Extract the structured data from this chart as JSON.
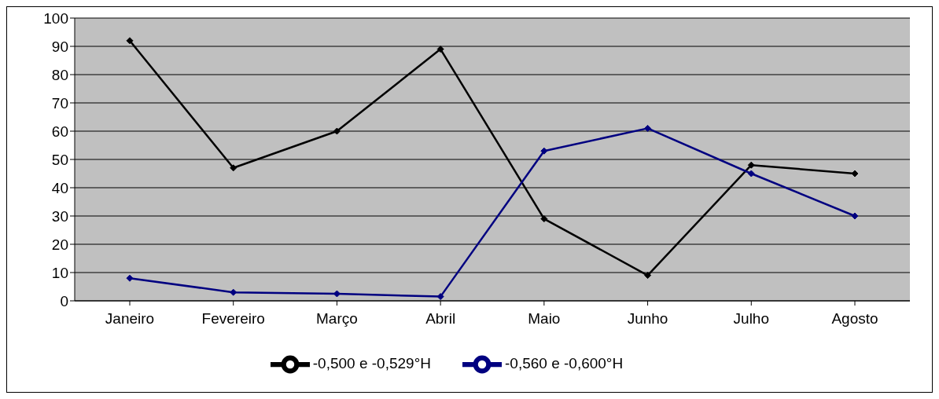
{
  "chart_data": {
    "type": "line",
    "categories": [
      "Janeiro",
      "Fevereiro",
      "Março",
      "Abril",
      "Maio",
      "Junho",
      "Julho",
      "Agosto"
    ],
    "series": [
      {
        "name": "-0,500 e -0,529°H",
        "color": "#000000",
        "values": [
          92,
          47,
          60,
          89,
          29,
          9,
          48,
          45
        ]
      },
      {
        "name": "-0,560 e -0,600°H",
        "color": "#000080",
        "values": [
          8,
          3,
          2.5,
          1.5,
          53,
          61,
          45,
          30
        ]
      }
    ],
    "ylim": [
      0,
      100
    ],
    "yticks": [
      0,
      10,
      20,
      30,
      40,
      50,
      60,
      70,
      80,
      90,
      100
    ],
    "grid": "y",
    "legend": "bottom",
    "marker": "diamond",
    "line_style": "solid"
  }
}
